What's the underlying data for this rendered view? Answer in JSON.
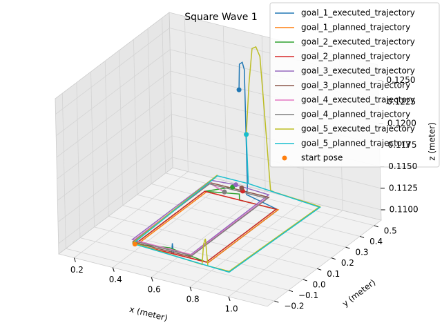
{
  "chart_data": {
    "type": "line3d",
    "title": "Square Wave 1",
    "x_label": "x (meter)",
    "y_label": "y (meter)",
    "z_label": "z (meter)",
    "xlim": [
      0.12,
      1.2
    ],
    "ylim": [
      -0.25,
      0.55
    ],
    "zlim": [
      0.1088,
      0.1268
    ],
    "xticks": [
      0.2,
      0.4,
      0.6,
      0.8,
      {
        "value": 1.0,
        "label": "1.0"
      }
    ],
    "yticks": [
      {
        "value": -0.2,
        "label": "−0.2"
      },
      {
        "value": -0.1,
        "label": "−0.1"
      },
      {
        "value": 0.0,
        "label": "0.0"
      },
      0.1,
      0.2,
      0.3,
      0.4,
      0.5
    ],
    "zticks": [
      {
        "value": 0.11,
        "label": "0.1100"
      },
      {
        "value": 0.1125,
        "label": "0.1125"
      },
      {
        "value": 0.115,
        "label": "0.1150"
      },
      {
        "value": 0.1175,
        "label": "0.1175"
      },
      {
        "value": 0.12,
        "label": "0.1200"
      },
      {
        "value": 0.1225,
        "label": "0.1225"
      },
      {
        "value": 0.125,
        "label": "0.1250"
      }
    ],
    "grid": true,
    "legend": "upper right",
    "series": [
      {
        "name": "goal_1_executed_trajectory",
        "color": "#1f77b4",
        "marker": "line",
        "x": [
          0.55,
          0.555,
          0.57,
          0.58,
          0.59,
          0.6,
          0.8,
          0.8,
          0.62,
          0.615,
          0.61,
          0.42,
          0.42
        ],
        "y": [
          0.45,
          0.45,
          0.45,
          0.45,
          0.44,
          0.42,
          0.37,
          -0.12,
          -0.12,
          -0.12,
          -0.12,
          -0.12,
          0.36
        ],
        "z": [
          0.1215,
          0.1245,
          0.1248,
          0.124,
          0.1105,
          0.11,
          0.11,
          0.11,
          0.11,
          0.1112,
          0.11,
          0.11,
          0.11
        ]
      },
      {
        "name": "goal_1_planned_trajectory",
        "color": "#ff7f0e",
        "marker": "line",
        "x": [
          0.43,
          0.8,
          0.8,
          0.43,
          0.43
        ],
        "y": [
          -0.12,
          -0.12,
          0.37,
          0.37,
          -0.12
        ],
        "z": [
          0.11,
          0.11,
          0.11,
          0.11,
          0.11
        ]
      },
      {
        "name": "goal_2_executed_trajectory",
        "color": "#2ca02c",
        "marker": "line",
        "x": [
          0.52,
          0.42,
          0.42,
          0.6,
          0.79,
          0.79,
          0.6,
          0.6,
          0.42
        ],
        "y": [
          0.43,
          0.37,
          -0.12,
          -0.12,
          -0.12,
          0.37,
          0.37,
          0.37,
          0.37
        ],
        "z": [
          0.1103,
          0.11,
          0.11,
          0.1106,
          0.11,
          0.11,
          0.11,
          0.1107,
          0.11
        ]
      },
      {
        "name": "goal_2_planned_trajectory",
        "color": "#d62728",
        "marker": "line",
        "x": [
          0.42,
          0.79,
          0.79,
          0.42,
          0.42
        ],
        "y": [
          -0.12,
          -0.12,
          0.37,
          0.37,
          -0.12
        ],
        "z": [
          0.11,
          0.11,
          0.11,
          0.11,
          0.11
        ]
      },
      {
        "name": "goal_3_executed_trajectory",
        "color": "#9467bd",
        "marker": "line",
        "x": [
          0.53,
          0.7,
          0.7,
          0.4,
          0.4,
          0.53
        ],
        "y": [
          0.44,
          0.44,
          -0.11,
          -0.11,
          0.44,
          0.44
        ],
        "z": [
          0.1105,
          0.1103,
          0.1102,
          0.1103,
          0.1103,
          0.1105
        ]
      },
      {
        "name": "goal_3_planned_trajectory",
        "color": "#8c564b",
        "marker": "line",
        "x": [
          0.4,
          0.7,
          0.7,
          0.4,
          0.4
        ],
        "y": [
          -0.11,
          -0.11,
          0.44,
          0.44,
          -0.11
        ],
        "z": [
          0.11,
          0.11,
          0.11,
          0.11,
          0.11
        ]
      },
      {
        "name": "goal_4_executed_trajectory",
        "color": "#e377c2",
        "marker": "line",
        "x": [
          0.5,
          0.4,
          0.4,
          0.7,
          0.7
        ],
        "y": [
          0.4,
          0.43,
          -0.1,
          -0.1,
          0.43
        ],
        "z": [
          0.11,
          0.1101,
          0.1101,
          0.1101,
          0.1101
        ]
      },
      {
        "name": "goal_4_planned_trajectory",
        "color": "#7f7f7f",
        "marker": "line",
        "x": [
          0.4,
          0.7,
          0.7,
          0.4,
          0.4
        ],
        "y": [
          -0.1,
          -0.1,
          0.43,
          0.43,
          -0.1
        ],
        "z": [
          0.11,
          0.11,
          0.11,
          0.11,
          0.11
        ]
      },
      {
        "name": "goal_5_executed_trajectory",
        "color": "#bcbd22",
        "marker": "line",
        "x": [
          0.56,
          0.58,
          0.6,
          0.62,
          0.64,
          0.66,
          0.68,
          0.7,
          0.95,
          0.93,
          0.82,
          0.81,
          0.8,
          0.79,
          0.41,
          0.39
        ],
        "y": [
          0.48,
          0.48,
          0.48,
          0.48,
          0.48,
          0.48,
          0.48,
          0.48,
          0.46,
          -0.15,
          -0.15,
          -0.15,
          -0.15,
          -0.15,
          -0.12,
          0.5
        ],
        "z": [
          0.116,
          0.122,
          0.1262,
          0.1265,
          0.1255,
          0.118,
          0.1102,
          0.1101,
          0.1101,
          0.1101,
          0.1101,
          0.1132,
          0.1125,
          0.1101,
          0.1101,
          0.1101
        ]
      },
      {
        "name": "goal_5_planned_trajectory",
        "color": "#17becf",
        "marker": "line",
        "x": [
          0.56,
          0.55,
          0.39,
          0.41,
          0.93,
          0.95,
          0.55
        ],
        "y": [
          0.48,
          0.5,
          0.5,
          -0.12,
          -0.15,
          0.46,
          0.5
        ],
        "z": [
          0.116,
          0.11,
          0.11,
          0.11,
          0.11,
          0.11,
          0.11
        ]
      },
      {
        "name": "start pose",
        "color": "#ff7f0e",
        "marker": "scatter",
        "x": [
          0.55,
          0.42,
          0.52,
          0.58,
          0.53,
          0.56,
          0.5,
          0.5,
          0.56,
          0.56
        ],
        "y": [
          0.45,
          -0.12,
          0.43,
          0.42,
          0.44,
          0.44,
          0.4,
          0.4,
          0.48,
          0.48
        ],
        "z": [
          0.1215,
          0.11,
          0.1103,
          0.1103,
          0.1105,
          0.1103,
          0.11,
          0.11,
          0.116,
          0.116
        ],
        "point_colors": [
          "#1f77b4",
          "#ff7f0e",
          "#2ca02c",
          "#d62728",
          "#9467bd",
          "#8c564b",
          "#e377c2",
          "#7f7f7f",
          "#bcbd22",
          "#17becf"
        ]
      }
    ]
  }
}
